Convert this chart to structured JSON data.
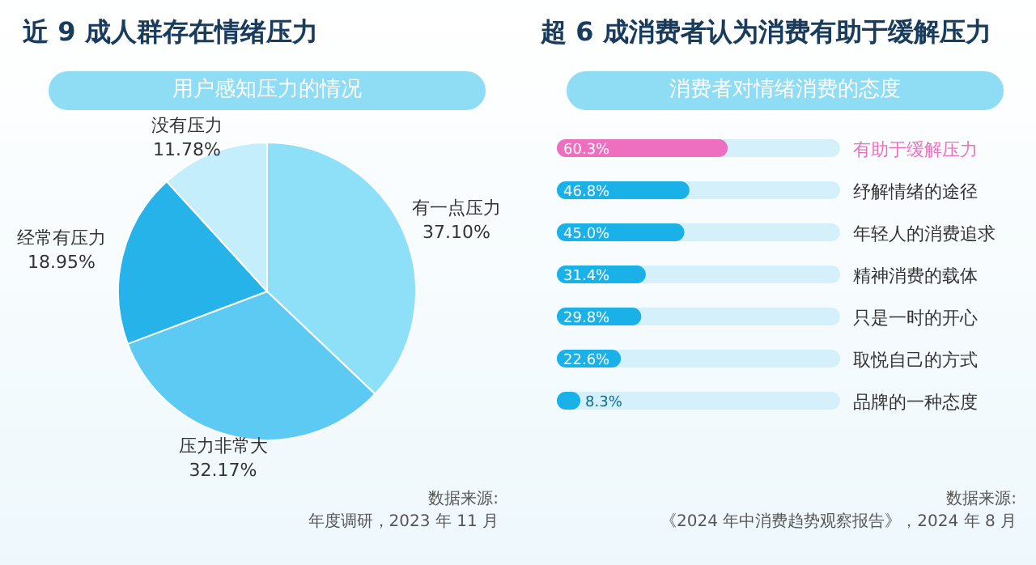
{
  "chart_data": [
    {
      "type": "pie",
      "title": "近 9 成人群存在情绪压力",
      "subtitle": "用户感知压力的情况",
      "categories": [
        "有一点压力",
        "压力非常大",
        "经常有压力",
        "没有压力"
      ],
      "values": [
        37.1,
        32.17,
        18.95,
        11.78
      ],
      "value_labels": [
        "37.10%",
        "32.17%",
        "18.95%",
        "11.78%"
      ],
      "colors": [
        "#8ee0f8",
        "#5ccaf2",
        "#26b3ea",
        "#c4eefb"
      ],
      "annotations": [
        "数据来源:",
        "年度调研，2023 年 11 月"
      ]
    },
    {
      "type": "bar",
      "orientation": "horizontal",
      "title": "超 6 成消费者认为消费有助于缓解压力",
      "subtitle": "消费者对情绪消费的态度",
      "categories": [
        "有助于缓解压力",
        "纾解情绪的途径",
        "年轻人的消费追求",
        "精神消费的载体",
        "只是一时的开心",
        "取悦自己的方式",
        "品牌的一种态度"
      ],
      "values": [
        60.3,
        46.8,
        45.0,
        31.4,
        29.8,
        22.6,
        8.3
      ],
      "value_labels": [
        "60.3%",
        "46.8%",
        "45.0%",
        "31.4%",
        "29.8%",
        "22.6%",
        "8.3%"
      ],
      "colors": [
        "#ee6fc0",
        "#1ab0e8",
        "#1ab0e8",
        "#1ab0e8",
        "#1ab0e8",
        "#1ab0e8",
        "#1ab0e8"
      ],
      "annotations": [
        "数据来源:",
        "《2024 年中消费趋势观察报告》，2024 年 8 月"
      ]
    }
  ]
}
